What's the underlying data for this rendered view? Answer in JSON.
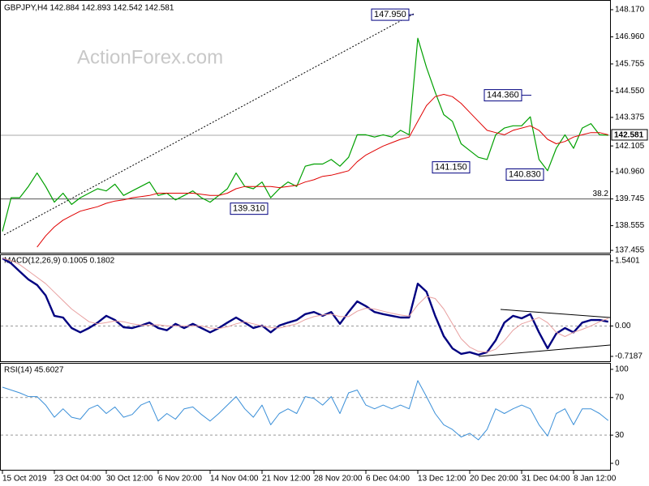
{
  "chart_data": [
    {
      "type": "line",
      "title": "GBPJPY,H4 142.884 142.893 142.542 142.581",
      "watermark": "ActionForex.com",
      "series": [
        {
          "color": "#00a000",
          "width": 1.2,
          "values": [
            138.3,
            139.8,
            139.8,
            140.3,
            140.9,
            140.3,
            139.6,
            140.0,
            139.5,
            139.8,
            140.0,
            140.2,
            140.1,
            140.4,
            139.9,
            140.1,
            140.3,
            140.5,
            139.9,
            140.0,
            139.7,
            139.9,
            140.1,
            139.8,
            139.6,
            139.9,
            140.2,
            140.9,
            140.3,
            140.2,
            140.5,
            139.8,
            140.2,
            140.5,
            140.3,
            141.2,
            141.3,
            141.3,
            141.5,
            141.2,
            141.6,
            142.6,
            142.6,
            142.5,
            142.6,
            142.5,
            142.8,
            142.6,
            146.9,
            145.6,
            144.5,
            143.5,
            143.2,
            142.2,
            141.9,
            141.6,
            141.5,
            142.6,
            142.9,
            143.0,
            143.0,
            143.4,
            141.5,
            141.0,
            142.0,
            142.6,
            142.0,
            142.9,
            143.1,
            142.6,
            142.581
          ]
        },
        {
          "color": "#e00000",
          "width": 1,
          "values": [
            null,
            null,
            null,
            null,
            137.6,
            138.1,
            138.5,
            138.8,
            139.0,
            139.2,
            139.3,
            139.4,
            139.55,
            139.65,
            139.7,
            139.8,
            139.85,
            139.9,
            140.0,
            140.0,
            140.0,
            140.0,
            140.0,
            139.95,
            139.9,
            139.9,
            140.0,
            140.2,
            140.3,
            140.3,
            140.3,
            140.3,
            140.25,
            140.3,
            140.35,
            140.5,
            140.6,
            140.75,
            140.8,
            140.9,
            141.0,
            141.4,
            141.7,
            141.9,
            142.1,
            142.25,
            142.4,
            142.5,
            143.2,
            143.9,
            144.3,
            144.4,
            144.3,
            144.0,
            143.6,
            143.2,
            142.8,
            142.7,
            142.6,
            142.8,
            142.9,
            143.0,
            142.8,
            142.4,
            142.2,
            142.3,
            142.5,
            142.6,
            142.7,
            142.7,
            142.6
          ]
        }
      ],
      "ylim": [
        137.35,
        148.53
      ],
      "yticks": [
        {
          "value": 148.17,
          "label": "148.170"
        },
        {
          "value": 146.96,
          "label": "146.960"
        },
        {
          "value": 145.755,
          "label": "145.755"
        },
        {
          "value": 144.55,
          "label": "144.550"
        },
        {
          "value": 143.375,
          "label": "143.375"
        },
        {
          "value": 142.105,
          "label": "142.105"
        },
        {
          "value": 140.96,
          "label": "140.960"
        },
        {
          "value": 139.745,
          "label": "139.745"
        },
        {
          "value": 138.555,
          "label": "138.555"
        },
        {
          "value": 137.455,
          "label": "137.455"
        }
      ],
      "last_price": 142.581,
      "fib_level": {
        "value": 139.745,
        "label": "38.2"
      },
      "annotations": [
        {
          "text": "147.950",
          "value": 147.95
        },
        {
          "text": "144.360",
          "value": 144.36
        },
        {
          "text": "141.150",
          "value": 141.15
        },
        {
          "text": "140.830",
          "value": 140.83
        },
        {
          "text": "139.310",
          "value": 139.31
        }
      ]
    },
    {
      "type": "line",
      "title": "MACD(12,26,9) 0.1005 0.1802",
      "series": [
        {
          "color": "#000080",
          "width": 2.4,
          "values": [
            1.6,
            1.48,
            1.29,
            1.1,
            0.97,
            0.72,
            0.24,
            0.2,
            -0.05,
            -0.15,
            -0.05,
            0.08,
            0.24,
            0.14,
            -0.03,
            -0.05,
            0.01,
            0.08,
            -0.05,
            -0.1,
            0.05,
            -0.05,
            0.05,
            -0.05,
            -0.15,
            -0.05,
            0.08,
            0.2,
            0.08,
            -0.05,
            0.01,
            -0.15,
            0.01,
            0.08,
            0.14,
            0.28,
            0.33,
            0.24,
            0.33,
            0.05,
            0.33,
            0.58,
            0.47,
            0.33,
            0.28,
            0.24,
            0.2,
            0.2,
            1.0,
            0.81,
            0.24,
            -0.24,
            -0.53,
            -0.66,
            -0.62,
            -0.68,
            -0.62,
            -0.34,
            0.08,
            0.24,
            0.18,
            0.28,
            -0.15,
            -0.53,
            -0.18,
            -0.05,
            -0.15,
            0.08,
            0.14,
            0.14,
            0.1005
          ]
        },
        {
          "color": "#e8a0a0",
          "width": 1,
          "values": [
            1.6,
            1.55,
            1.45,
            1.3,
            1.15,
            1.0,
            0.8,
            0.6,
            0.4,
            0.25,
            0.1,
            0.05,
            0.08,
            0.12,
            0.1,
            0.05,
            0.02,
            0.02,
            0.03,
            0.0,
            0.0,
            0.0,
            0.0,
            0.0,
            -0.05,
            -0.06,
            -0.02,
            0.05,
            0.1,
            0.05,
            0.0,
            -0.04,
            -0.05,
            0.0,
            0.05,
            0.15,
            0.22,
            0.26,
            0.28,
            0.22,
            0.22,
            0.35,
            0.42,
            0.4,
            0.35,
            0.3,
            0.26,
            0.23,
            0.5,
            0.7,
            0.65,
            0.4,
            0.05,
            -0.3,
            -0.5,
            -0.6,
            -0.62,
            -0.55,
            -0.35,
            -0.1,
            0.05,
            0.12,
            0.2,
            0.08,
            -0.15,
            -0.25,
            -0.15,
            -0.08,
            0.0,
            0.1,
            0.1802
          ]
        }
      ],
      "ylim": [
        -0.834,
        1.674
      ],
      "yticks": [
        1.5401,
        {
          "value": 0,
          "label": "0.00"
        },
        -0.7187
      ],
      "zero_line": true
    },
    {
      "type": "line",
      "title": "RSI(14) 45.6027",
      "series": [
        {
          "color": "#3a8fd8",
          "width": 1,
          "values": [
            81,
            78,
            75,
            71,
            71,
            62,
            49,
            58,
            49,
            47,
            58,
            62,
            53,
            60,
            49,
            52,
            62,
            66,
            45,
            53,
            47,
            58,
            60,
            52,
            45,
            53,
            62,
            71,
            58,
            49,
            62,
            41,
            53,
            58,
            53,
            71,
            69,
            62,
            71,
            53,
            75,
            78,
            62,
            58,
            62,
            58,
            62,
            58,
            88,
            71,
            53,
            41,
            36,
            28,
            32,
            25,
            36,
            58,
            53,
            58,
            62,
            58,
            41,
            29,
            53,
            58,
            41,
            58,
            58,
            53,
            45.6027
          ]
        }
      ],
      "ylim": [
        -6.9,
        106
      ],
      "yticks": [
        100,
        70,
        30,
        0
      ],
      "dashed_levels": [
        70,
        30
      ],
      "categories": [
        "15 Oct 2019",
        null,
        null,
        null,
        null,
        null,
        "23 Oct 04:00",
        null,
        null,
        null,
        null,
        null,
        "30 Oct 12:00",
        null,
        null,
        null,
        null,
        null,
        "6 Nov 20:00",
        null,
        null,
        null,
        null,
        null,
        "14 Nov 04:00",
        null,
        null,
        null,
        null,
        null,
        "21 Nov 12:00",
        null,
        null,
        null,
        null,
        null,
        "28 Nov 20:00",
        null,
        null,
        null,
        null,
        null,
        "6 Dec 04:00",
        null,
        null,
        null,
        null,
        null,
        "13 Dec 12:00",
        null,
        null,
        null,
        null,
        null,
        "20 Dec 20:00",
        null,
        null,
        null,
        null,
        null,
        "31 Dec 04:00",
        null,
        null,
        null,
        null,
        null,
        "8 Jan 12:00",
        null,
        null,
        null,
        null
      ]
    }
  ]
}
